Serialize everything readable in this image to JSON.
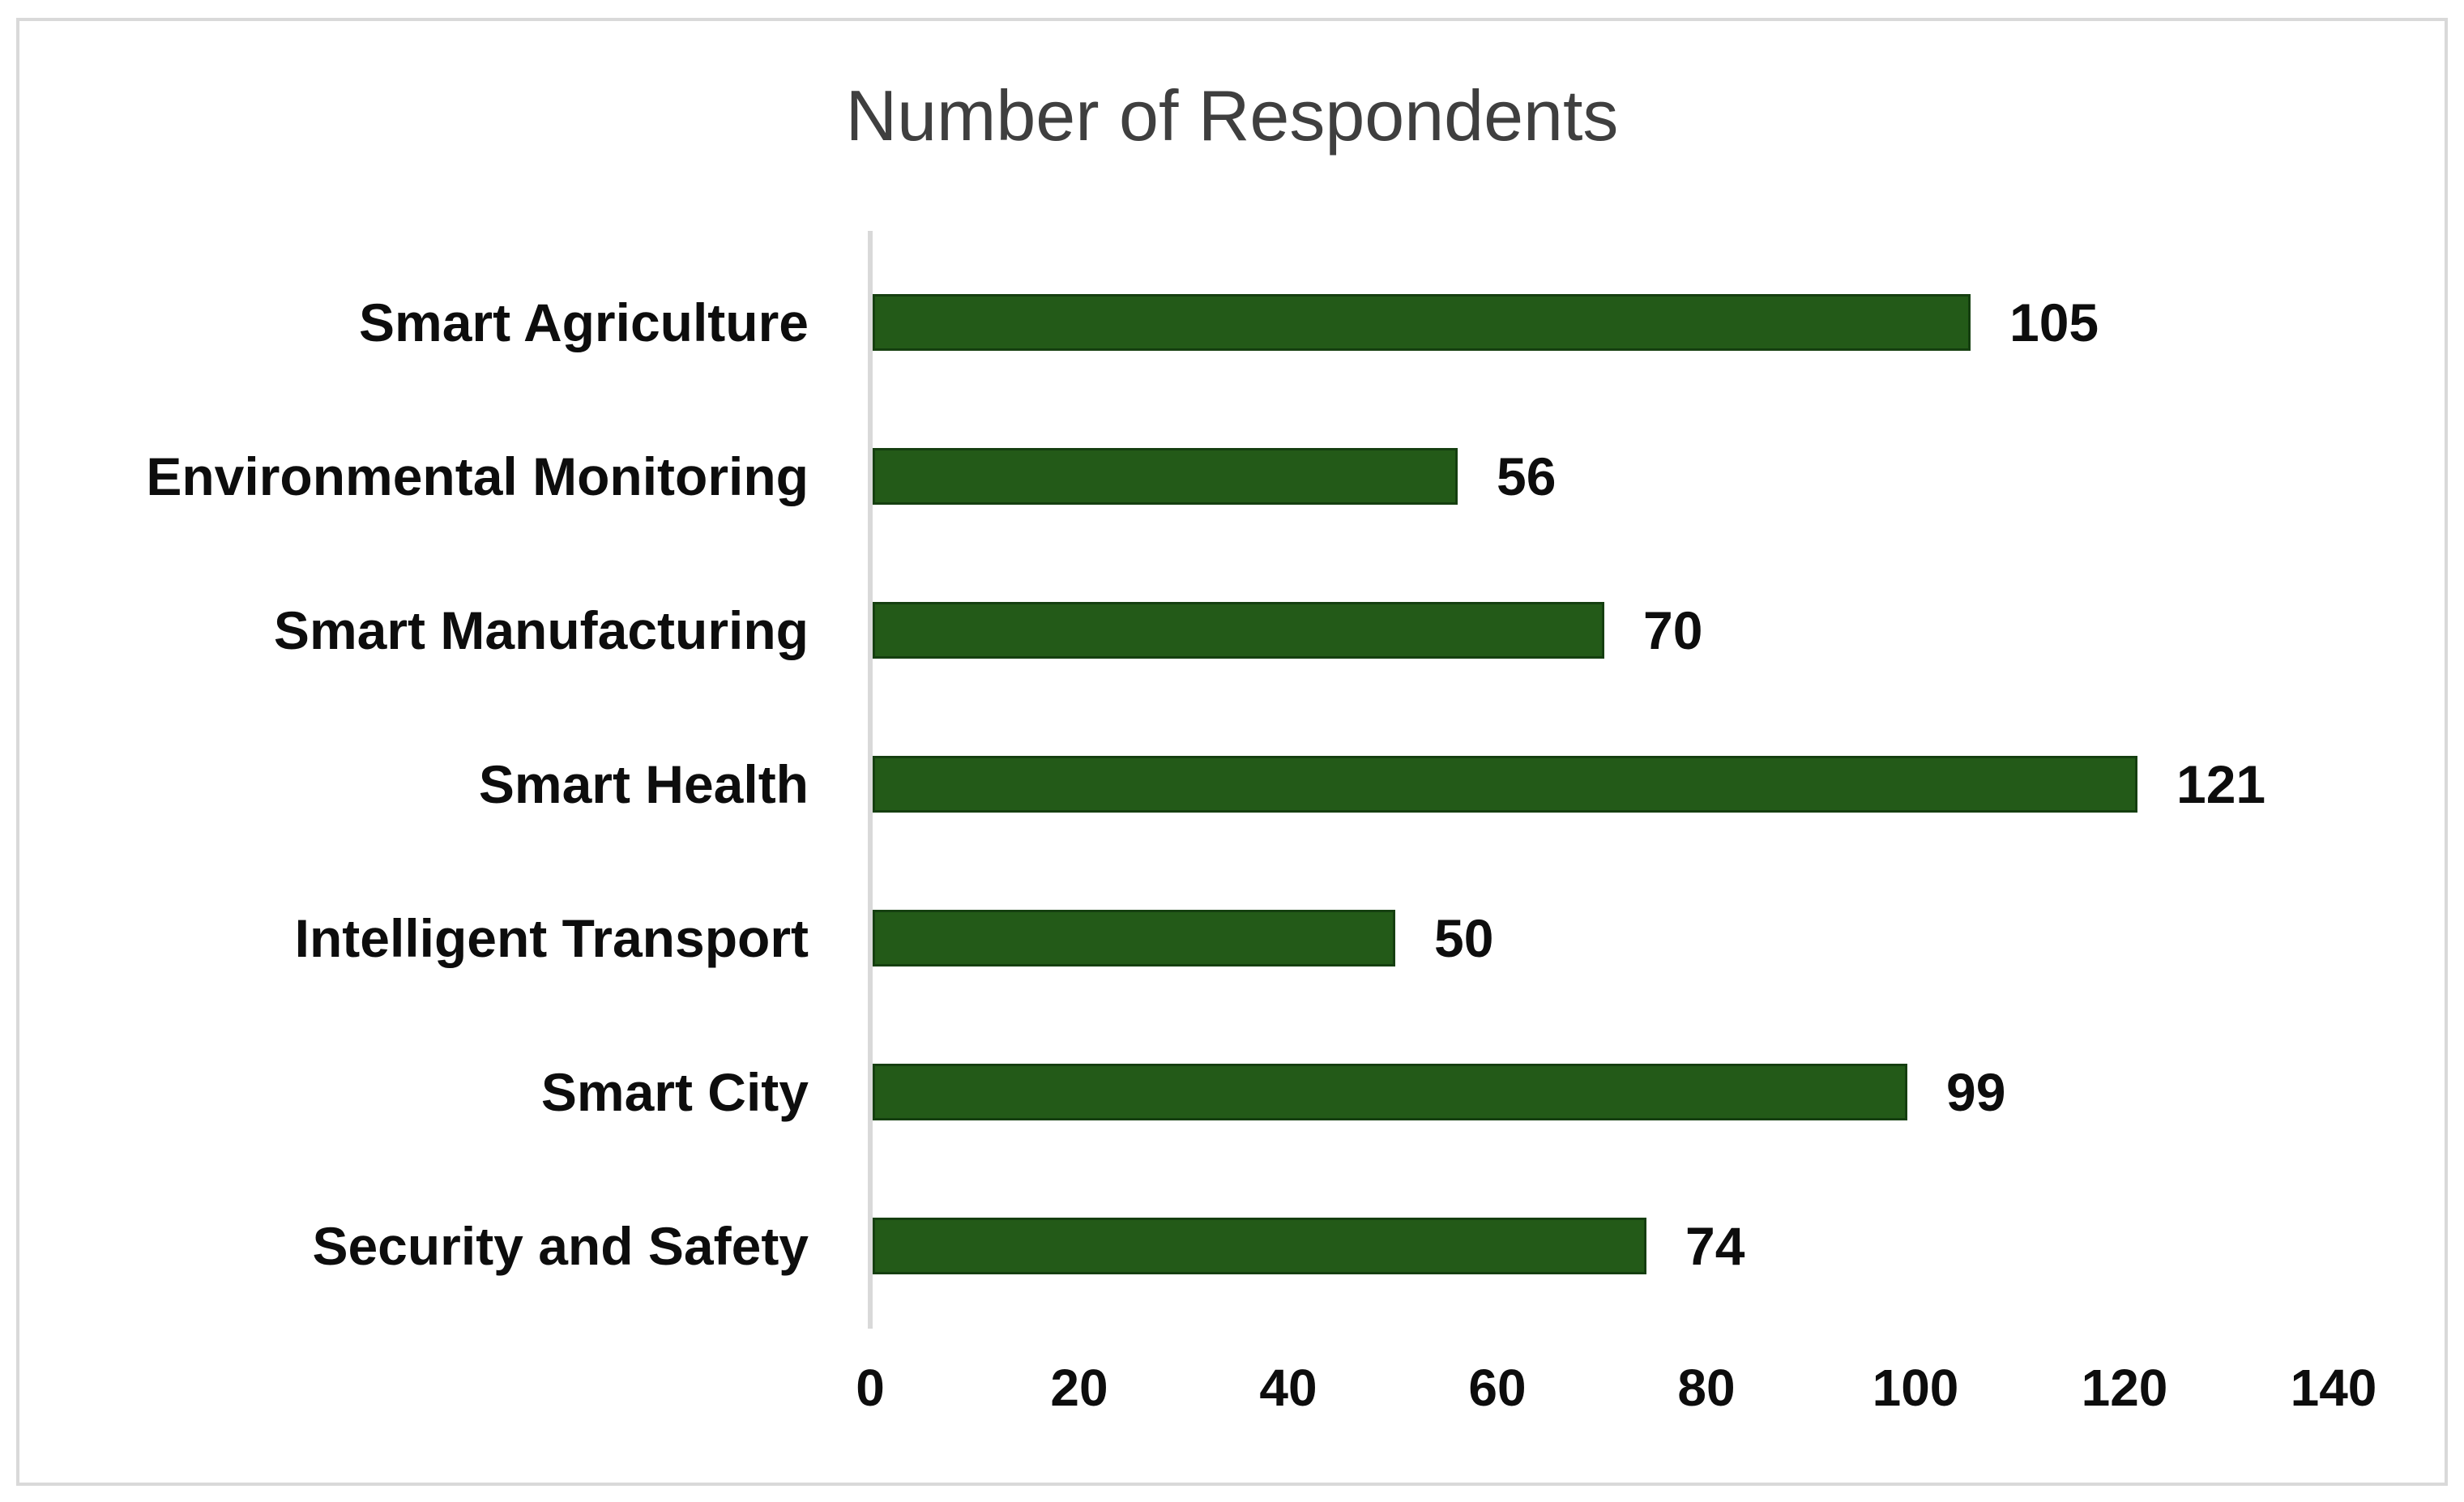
{
  "chart_data": {
    "type": "bar",
    "orientation": "horizontal",
    "title": "Number of Respondents",
    "categories": [
      "Smart Agriculture",
      "Environmental Monitoring",
      "Smart Manufacturing",
      "Smart Health",
      "Intelligent Transport",
      "Smart City",
      "Security and Safety"
    ],
    "values": [
      105,
      56,
      70,
      121,
      50,
      99,
      74
    ],
    "data_labels": [
      "105",
      "56",
      "70",
      "121",
      "50",
      "99",
      "74"
    ],
    "x_ticks": [
      "0",
      "20",
      "40",
      "60",
      "80",
      "100",
      "120",
      "140"
    ],
    "xlim": [
      0,
      140
    ],
    "xlabel": "",
    "ylabel": "",
    "grid": false,
    "legend": false,
    "colors": {
      "bar_fill": "#235a18",
      "bar_border": "#153f10",
      "axis_line": "#d9d9d9",
      "chart_border": "#d9d9d9",
      "title_text": "#3f3f3f",
      "label_text": "#0d0d0d"
    }
  }
}
